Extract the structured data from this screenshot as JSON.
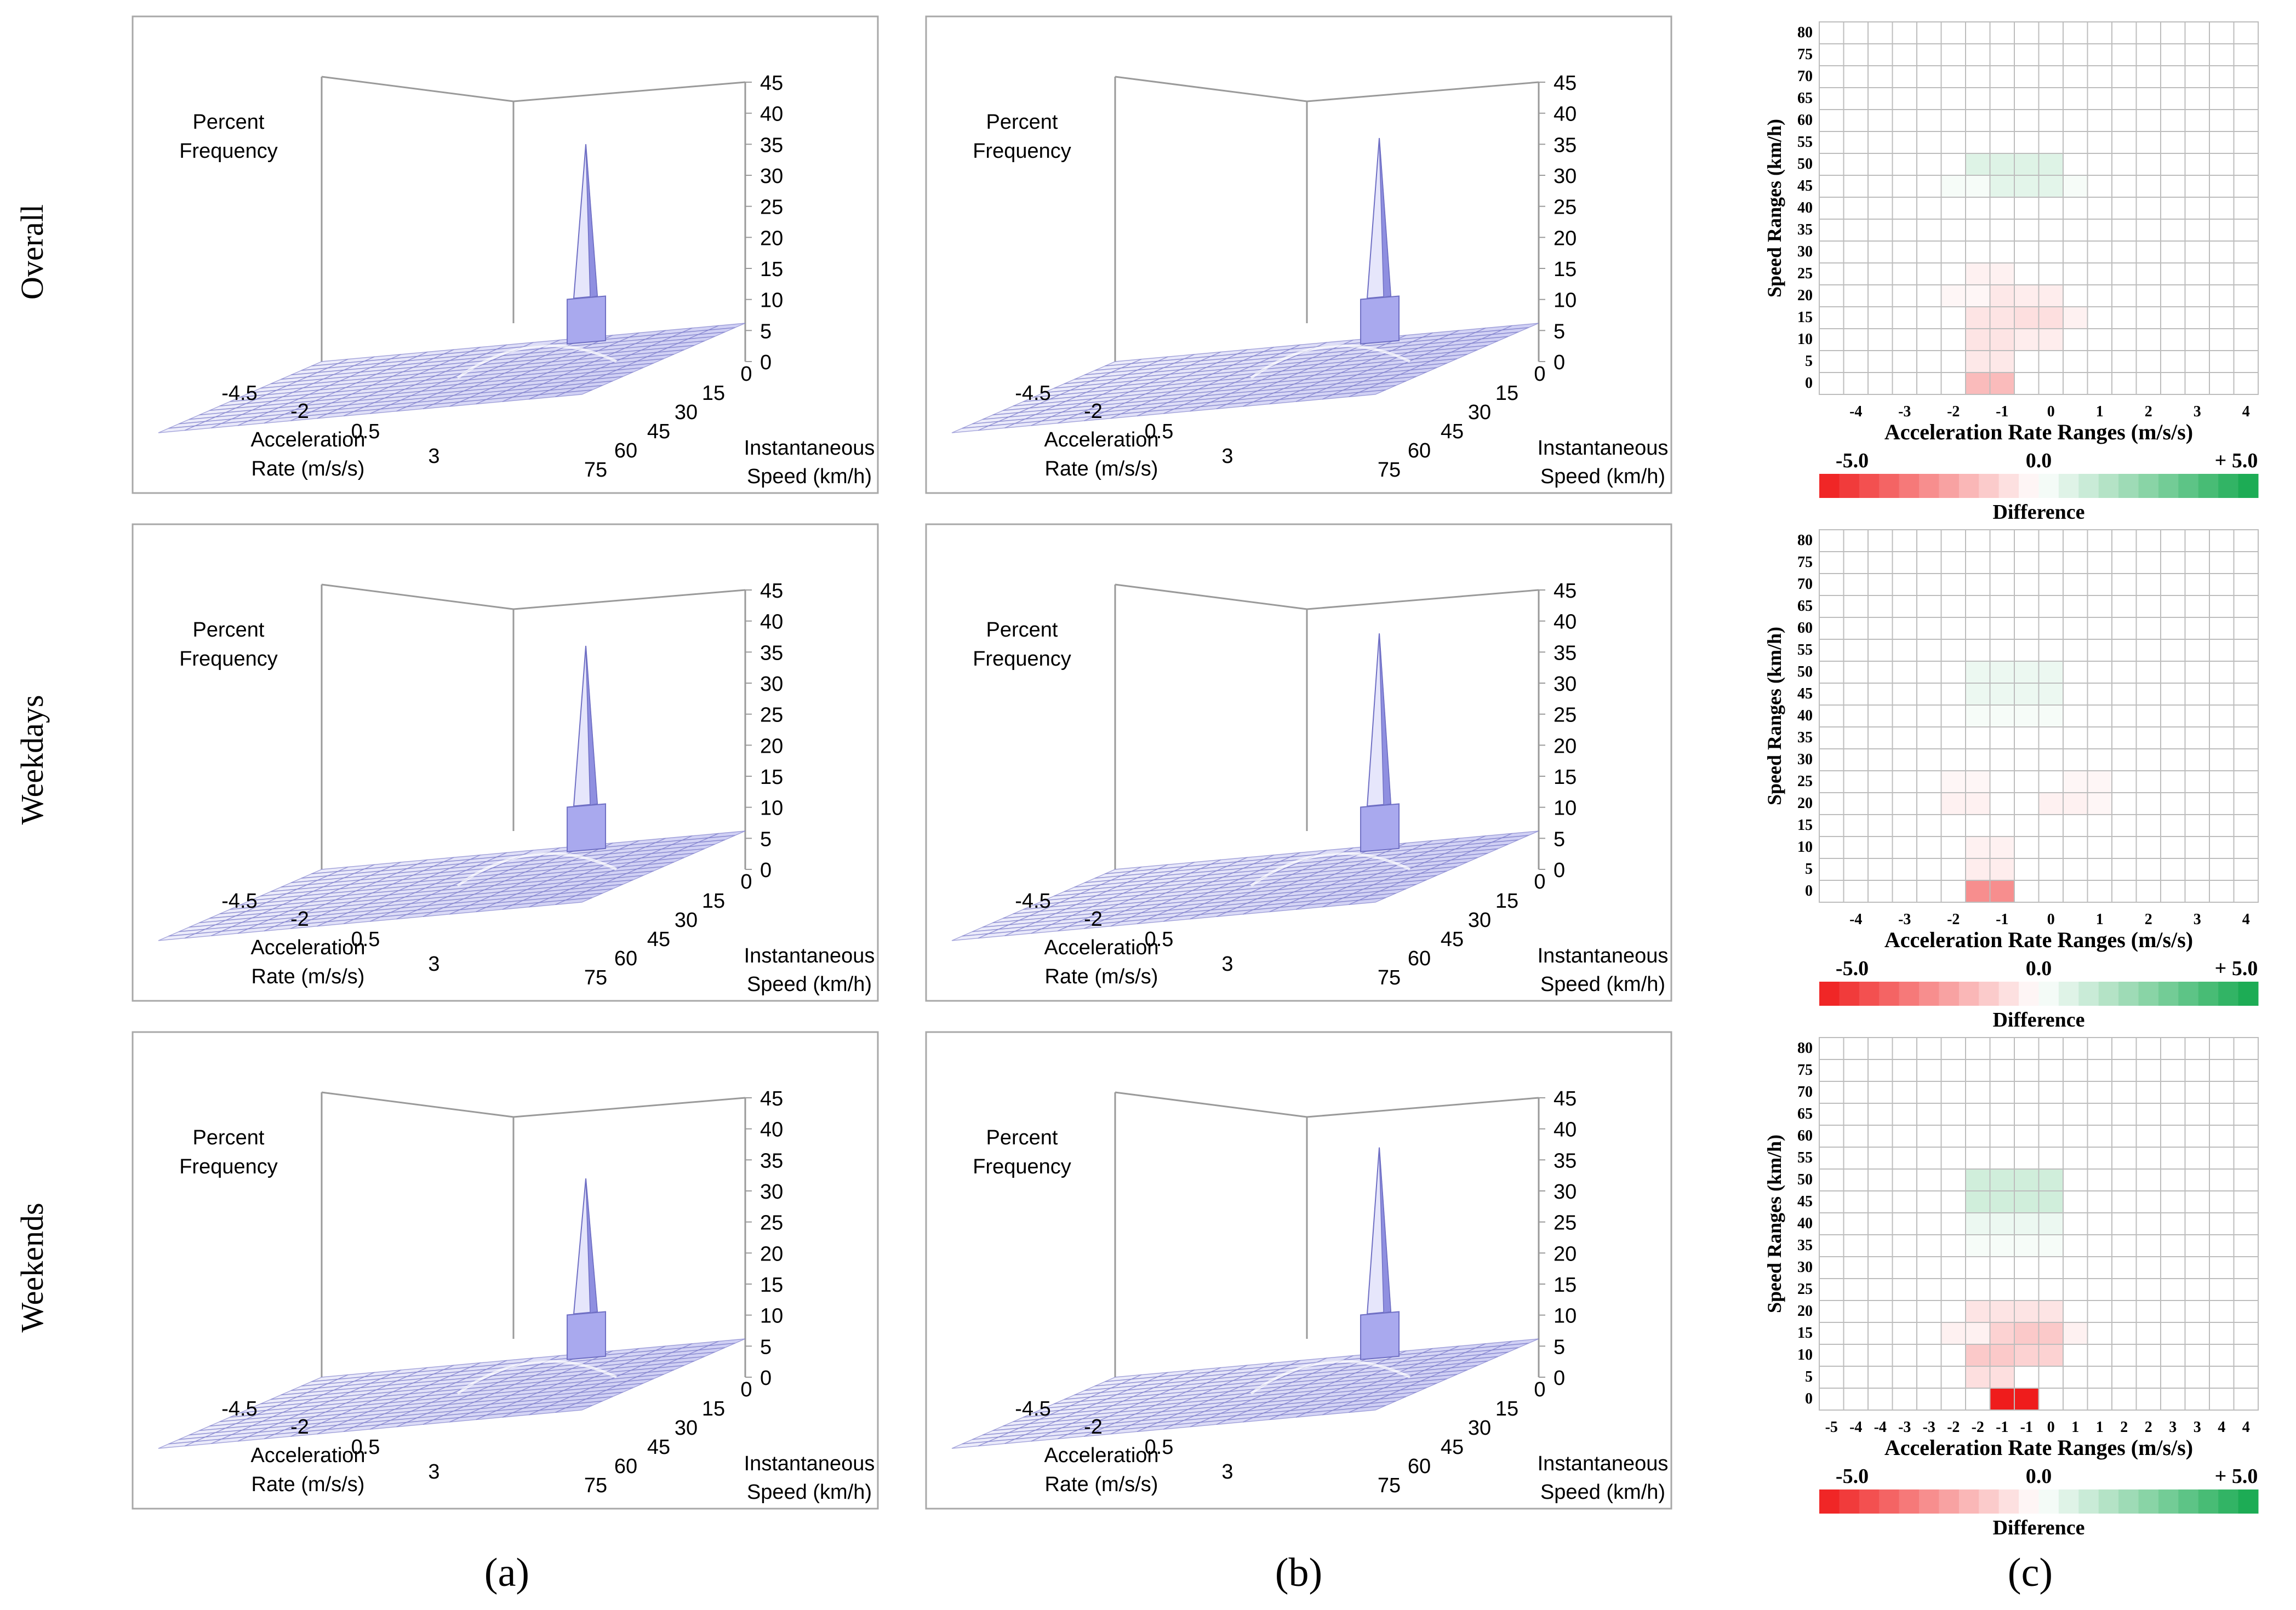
{
  "row_labels": [
    "Overall",
    "Weekdays",
    "Weekends"
  ],
  "column_labels": [
    "(a)",
    "(b)",
    "(c)"
  ],
  "colors": {
    "surface_fill": "#c9c9f2",
    "surface_edge": "#6f6fc4",
    "frame": "#9a9a9a",
    "neg_color": "#ef1c1c",
    "pos_color": "#12a84d",
    "grid": "#bdbdbd"
  },
  "surface_labels": {
    "z_title": [
      "Percent",
      "Frequency"
    ],
    "x_title": [
      "Acceleration",
      "Rate (m/s/s)"
    ],
    "y_title": [
      "Instantaneous",
      "Speed (km/h)"
    ],
    "z_ticks": [
      "45",
      "40",
      "35",
      "30",
      "25",
      "20",
      "15",
      "10",
      "5",
      "0"
    ],
    "x_ticks": [
      "-4.5",
      "-2",
      "0.5",
      "3"
    ],
    "y_ticks": [
      "0",
      "15",
      "30",
      "45",
      "60",
      "75"
    ]
  },
  "heatmap_labels": {
    "y_title": "Speed Ranges (km/h)",
    "x_title": "Acceleration Rate Ranges (m/s/s)",
    "y_ticks": [
      "80",
      "75",
      "70",
      "65",
      "60",
      "55",
      "50",
      "45",
      "40",
      "35",
      "30",
      "25",
      "20",
      "15",
      "10",
      "5",
      "0"
    ],
    "x_ticks_top": [
      "-4",
      "-3",
      "-2",
      "-1",
      "0",
      "1",
      "2",
      "3",
      "4"
    ],
    "x_ticks_bottom": [
      "-5",
      "-4",
      "-4",
      "-3",
      "-3",
      "-2",
      "-2",
      "-1",
      "-1",
      "0",
      "1",
      "1",
      "2",
      "2",
      "3",
      "3",
      "4",
      "4"
    ],
    "legend_min": "-5.0",
    "legend_mid": "0.0",
    "legend_max": "+ 5.0",
    "legend_title": "Difference"
  },
  "chart_data": [
    {
      "type": "surface3d",
      "panel": "a",
      "row": "Overall",
      "title": "Percent Frequency",
      "xlabel": "Acceleration Rate (m/s/s)",
      "ylabel": "Instantaneous Speed (km/h)",
      "zlim": [
        0,
        45
      ],
      "peak": {
        "acceleration": 0,
        "speed": 0,
        "percent": 35
      },
      "plateau_percent": 7
    },
    {
      "type": "surface3d",
      "panel": "b",
      "row": "Overall",
      "title": "Percent Frequency",
      "xlabel": "Acceleration Rate (m/s/s)",
      "ylabel": "Instantaneous Speed (km/h)",
      "zlim": [
        0,
        45
      ],
      "peak": {
        "acceleration": 0,
        "speed": 0,
        "percent": 36
      },
      "plateau_percent": 7
    },
    {
      "type": "heatmap",
      "panel": "c",
      "row": "Overall",
      "title": "Difference",
      "xlabel": "Acceleration Rate Ranges (m/s/s)",
      "ylabel": "Speed Ranges (km/h)",
      "value_range": [
        -5,
        5
      ],
      "cells": [
        {
          "acc": -0.5,
          "speed": 0,
          "value": -1.5
        },
        {
          "acc": -0.5,
          "speed": 5,
          "value": -0.5
        },
        {
          "acc": -0.5,
          "speed": 10,
          "value": -0.6
        },
        {
          "acc": -0.5,
          "speed": 15,
          "value": -0.6
        },
        {
          "acc": -0.5,
          "speed": 20,
          "value": -0.5
        },
        {
          "acc": -0.5,
          "speed": 25,
          "value": -0.3
        },
        {
          "acc": 0.5,
          "speed": 10,
          "value": -0.4
        },
        {
          "acc": 0.5,
          "speed": 15,
          "value": -0.7
        },
        {
          "acc": 0.5,
          "speed": 20,
          "value": -0.4
        },
        {
          "acc": 1,
          "speed": 15,
          "value": -0.3
        },
        {
          "acc": -1,
          "speed": 20,
          "value": -0.2
        },
        {
          "acc": -0.5,
          "speed": 45,
          "value": 0.6
        },
        {
          "acc": -0.5,
          "speed": 50,
          "value": 0.7
        },
        {
          "acc": 0.5,
          "speed": 45,
          "value": 0.6
        },
        {
          "acc": 0.5,
          "speed": 50,
          "value": 0.7
        },
        {
          "acc": -1,
          "speed": 45,
          "value": 0.2
        },
        {
          "acc": 1,
          "speed": 45,
          "value": 0.2
        }
      ]
    },
    {
      "type": "surface3d",
      "panel": "a",
      "row": "Weekdays",
      "title": "Percent Frequency",
      "xlabel": "Acceleration Rate (m/s/s)",
      "ylabel": "Instantaneous Speed (km/h)",
      "zlim": [
        0,
        45
      ],
      "peak": {
        "acceleration": 0,
        "speed": 0,
        "percent": 36
      },
      "plateau_percent": 7
    },
    {
      "type": "surface3d",
      "panel": "b",
      "row": "Weekdays",
      "title": "Percent Frequency",
      "xlabel": "Acceleration Rate (m/s/s)",
      "ylabel": "Instantaneous Speed (km/h)",
      "zlim": [
        0,
        45
      ],
      "peak": {
        "acceleration": 0,
        "speed": 0,
        "percent": 38
      },
      "plateau_percent": 7
    },
    {
      "type": "heatmap",
      "panel": "c",
      "row": "Weekdays",
      "title": "Difference",
      "xlabel": "Acceleration Rate Ranges (m/s/s)",
      "ylabel": "Speed Ranges (km/h)",
      "value_range": [
        -5,
        5
      ],
      "cells": [
        {
          "acc": -0.5,
          "speed": 0,
          "value": -2.5
        },
        {
          "acc": -0.5,
          "speed": 5,
          "value": -0.4
        },
        {
          "acc": -0.5,
          "speed": 10,
          "value": -0.3
        },
        {
          "acc": -1,
          "speed": 20,
          "value": -0.3
        },
        {
          "acc": -1,
          "speed": 25,
          "value": -0.2
        },
        {
          "acc": 1,
          "speed": 20,
          "value": -0.3
        },
        {
          "acc": 1.5,
          "speed": 20,
          "value": -0.2
        },
        {
          "acc": 1.5,
          "speed": 25,
          "value": -0.2
        },
        {
          "acc": -0.5,
          "speed": 45,
          "value": 0.4
        },
        {
          "acc": -0.5,
          "speed": 50,
          "value": 0.4
        },
        {
          "acc": 0.5,
          "speed": 45,
          "value": 0.4
        },
        {
          "acc": 0.5,
          "speed": 50,
          "value": 0.4
        },
        {
          "acc": -0.5,
          "speed": 40,
          "value": 0.2
        },
        {
          "acc": 0.5,
          "speed": 40,
          "value": 0.2
        }
      ]
    },
    {
      "type": "surface3d",
      "panel": "a",
      "row": "Weekends",
      "title": "Percent Frequency",
      "xlabel": "Acceleration Rate (m/s/s)",
      "ylabel": "Instantaneous Speed (km/h)",
      "zlim": [
        0,
        45
      ],
      "peak": {
        "acceleration": 0,
        "speed": 0,
        "percent": 32
      },
      "plateau_percent": 7
    },
    {
      "type": "surface3d",
      "panel": "b",
      "row": "Weekends",
      "title": "Percent Frequency",
      "xlabel": "Acceleration Rate (m/s/s)",
      "ylabel": "Instantaneous Speed (km/h)",
      "zlim": [
        0,
        45
      ],
      "peak": {
        "acceleration": 0,
        "speed": 0,
        "percent": 37
      },
      "plateau_percent": 7
    },
    {
      "type": "heatmap",
      "panel": "c",
      "row": "Weekends",
      "title": "Difference",
      "xlabel": "Acceleration Rate Ranges (m/s/s)",
      "ylabel": "Speed Ranges (km/h)",
      "value_range": [
        -5,
        5
      ],
      "cells": [
        {
          "acc": 0,
          "speed": 0,
          "value": -5
        },
        {
          "acc": -0.5,
          "speed": 5,
          "value": -0.7
        },
        {
          "acc": -0.5,
          "speed": 10,
          "value": -1.2
        },
        {
          "acc": -0.5,
          "speed": 15,
          "value": -1.0
        },
        {
          "acc": -0.5,
          "speed": 20,
          "value": -0.6
        },
        {
          "acc": 0.5,
          "speed": 10,
          "value": -1.0
        },
        {
          "acc": 0.5,
          "speed": 15,
          "value": -1.2
        },
        {
          "acc": 0.5,
          "speed": 20,
          "value": -0.6
        },
        {
          "acc": -1,
          "speed": 15,
          "value": -0.3
        },
        {
          "acc": 1,
          "speed": 15,
          "value": -0.3
        },
        {
          "acc": -0.5,
          "speed": 45,
          "value": 1.0
        },
        {
          "acc": -0.5,
          "speed": 50,
          "value": 1.0
        },
        {
          "acc": 0.5,
          "speed": 45,
          "value": 1.0
        },
        {
          "acc": 0.5,
          "speed": 50,
          "value": 1.0
        },
        {
          "acc": -0.5,
          "speed": 40,
          "value": 0.4
        },
        {
          "acc": 0.5,
          "speed": 40,
          "value": 0.4
        },
        {
          "acc": -0.5,
          "speed": 35,
          "value": 0.2
        },
        {
          "acc": 0.5,
          "speed": 35,
          "value": 0.2
        }
      ]
    }
  ]
}
